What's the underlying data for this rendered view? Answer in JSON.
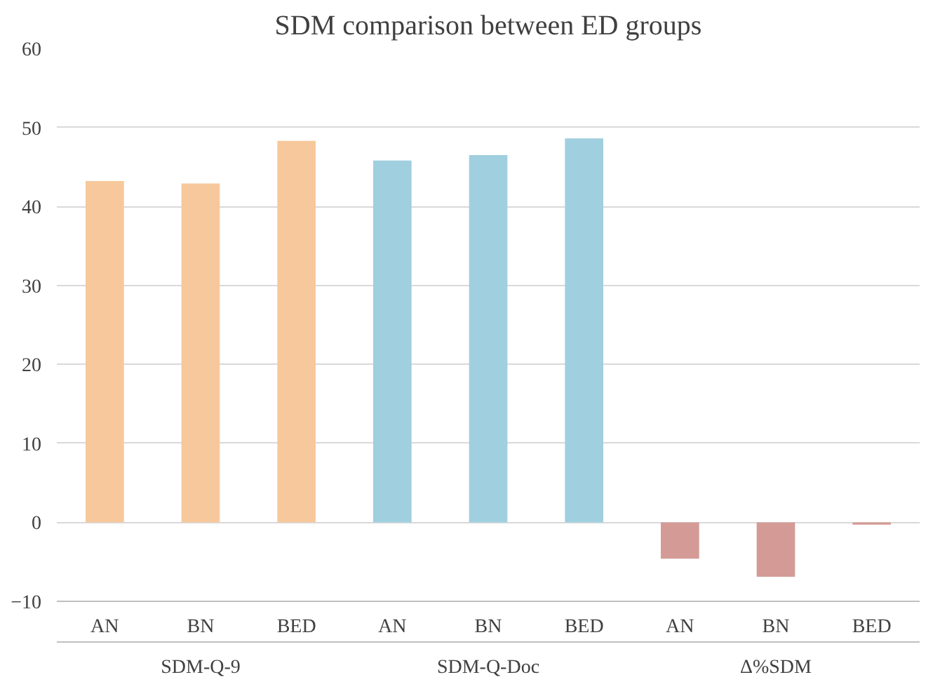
{
  "chart_data": {
    "type": "bar",
    "title": "SDM comparison between ED groups",
    "categories": [
      "AN",
      "BN",
      "BED",
      "AN",
      "BN",
      "BED",
      "AN",
      "BN",
      "BED"
    ],
    "series": [
      {
        "color": "#f7c89b",
        "values": [
          43.2,
          42.9,
          48.3,
          null,
          null,
          null,
          null,
          null,
          null
        ]
      },
      {
        "color": "#a0cfdf",
        "values": [
          null,
          null,
          null,
          45.8,
          46.5,
          48.6,
          null,
          null,
          null
        ]
      },
      {
        "color": "#d49b96",
        "values": [
          null,
          null,
          null,
          null,
          null,
          null,
          -4.6,
          -6.9,
          -0.3
        ]
      }
    ],
    "annotations": [
      "SDM-Q-9",
      "SDM-Q-Doc",
      "Δ%SDM"
    ],
    "ylim": [
      -10,
      60
    ],
    "yticks": [
      -10,
      0,
      10,
      20,
      30,
      40,
      50,
      60
    ],
    "grid": "y"
  }
}
